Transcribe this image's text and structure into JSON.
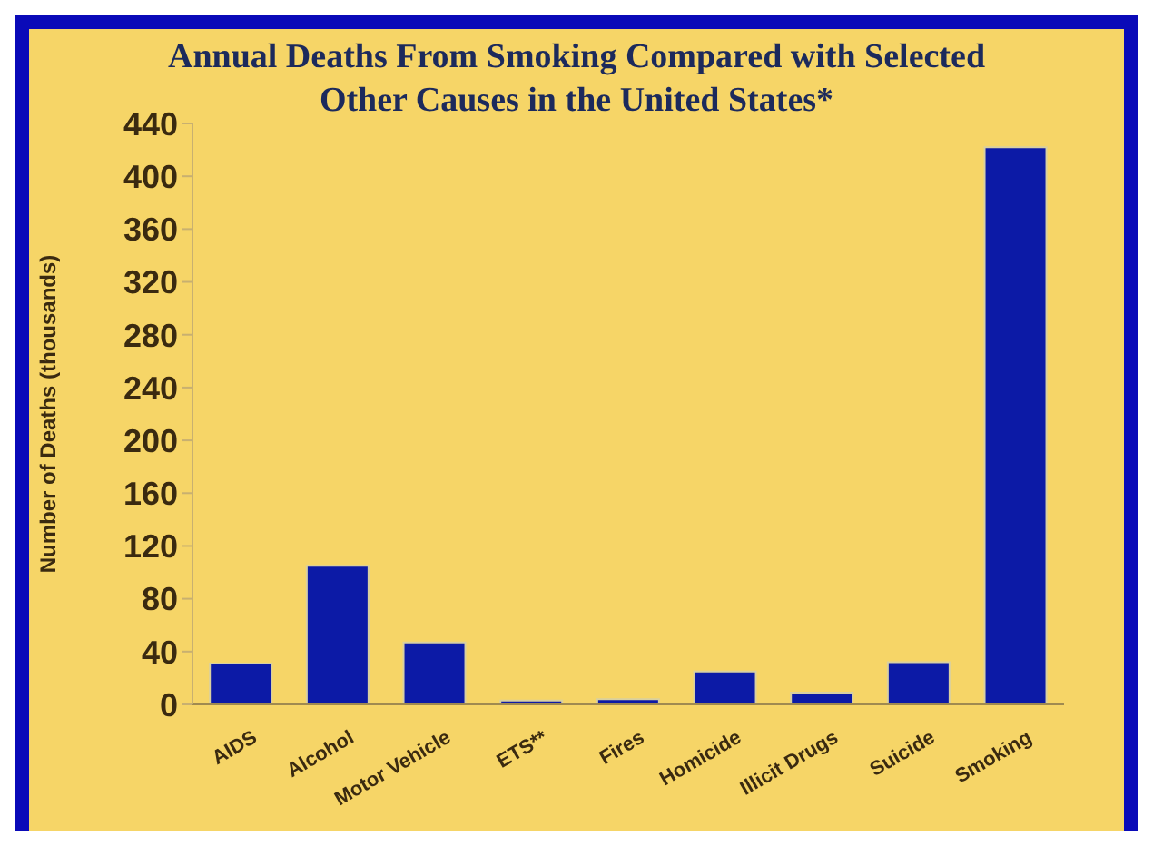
{
  "chart_data": {
    "type": "bar",
    "title": "Annual Deaths From Smoking Compared with Selected Other Causes in the United States*",
    "ylabel": "Number of Deaths (thousands)",
    "categories": [
      "AIDS",
      "Alcohol",
      "Motor Vehicle",
      "ETS**",
      "Fires",
      "Homicide",
      "Illicit Drugs",
      "Suicide",
      "Smoking"
    ],
    "values": [
      31,
      105,
      47,
      3,
      4,
      25,
      9,
      32,
      422
    ],
    "color": "#0c1aa6",
    "ylim": [
      0,
      440
    ],
    "yticks": [
      0,
      40,
      80,
      120,
      160,
      200,
      240,
      280,
      320,
      360,
      400,
      440
    ],
    "grid": false
  }
}
